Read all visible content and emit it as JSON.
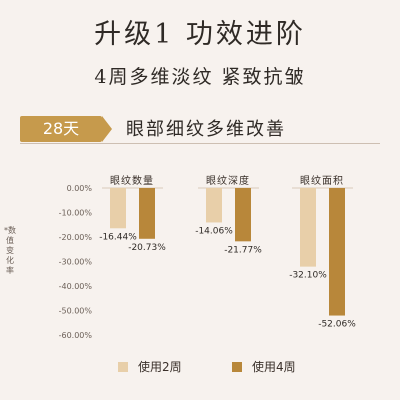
{
  "header": {
    "title": "升级1  功效进阶",
    "subtitle": "4周多维淡纹  紧致抗皱"
  },
  "banner": {
    "badge": "28天",
    "title": "眼部细纹多维改善"
  },
  "colors": {
    "week2": "#e8cfa9",
    "week4": "#b8873a",
    "badge": "#c69a4c",
    "background": "#f7f2ee"
  },
  "chart_data": {
    "type": "bar",
    "ylabel": "*数值变化率",
    "ylim": [
      -60,
      0
    ],
    "yticks": [
      "0.00%",
      "-10.00%",
      "-20.00%",
      "-30.00%",
      "-40.00%",
      "-50.00%",
      "-60.00%"
    ],
    "categories": [
      "眼纹数量",
      "眼纹深度",
      "眼纹面积"
    ],
    "series": [
      {
        "name": "使用2周",
        "values": [
          -16.44,
          -14.06,
          -32.1
        ],
        "labels": [
          "-16.44%",
          "-14.06%",
          "-32.10%"
        ]
      },
      {
        "name": "使用4周",
        "values": [
          -20.73,
          -21.77,
          -52.06
        ],
        "labels": [
          "-20.73%",
          "-21.77%",
          "-52.06%"
        ]
      }
    ],
    "grid": false,
    "legend": "bottom"
  }
}
